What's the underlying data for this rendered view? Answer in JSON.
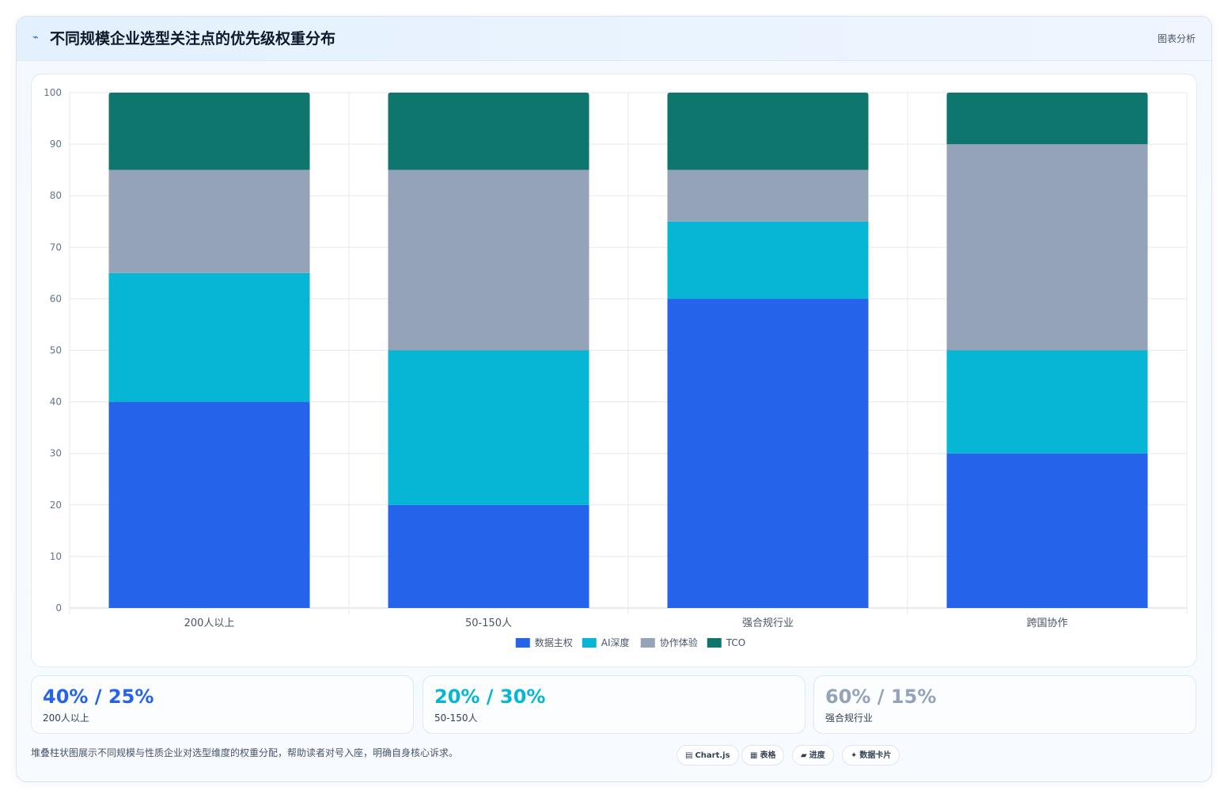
{
  "header": {
    "icon": "wave-icon",
    "title": "不同规模企业选型关注点的优先级权重分布",
    "tag": "图表分析"
  },
  "chart_data": {
    "type": "bar",
    "stacked": true,
    "title": "",
    "xlabel": "",
    "ylabel": "",
    "categories": [
      "200人以上",
      "50-150人",
      "强合规行业",
      "跨国协作"
    ],
    "ylim": [
      0,
      100
    ],
    "yticks": [
      0,
      10,
      20,
      30,
      40,
      50,
      60,
      70,
      80,
      90,
      100
    ],
    "grid": true,
    "legend_position": "bottom",
    "series": [
      {
        "name": "数据主权",
        "color": "#2563eb",
        "values": [
          40,
          20,
          60,
          30
        ]
      },
      {
        "name": "AI深度",
        "color": "#06b6d4",
        "values": [
          25,
          30,
          15,
          20
        ]
      },
      {
        "name": "协作体验",
        "color": "#94a3b8",
        "values": [
          20,
          35,
          10,
          40
        ]
      },
      {
        "name": "TCO",
        "color": "#0f766e",
        "values": [
          15,
          15,
          15,
          10
        ]
      }
    ]
  },
  "stats": [
    {
      "value": "40% / 25%",
      "label": "200人以上",
      "color": "#2563eb"
    },
    {
      "value": "20% / 30%",
      "label": "50-150人",
      "color": "#06b6d4"
    },
    {
      "value": "60% / 15%",
      "label": "强合规行业",
      "color": "#94a3b8"
    }
  ],
  "footer": {
    "text": "堆叠柱状图展示不同规模与性质企业对选型维度的权重分配，帮助读者对号入座，明确自身核心诉求。",
    "chips": [
      {
        "icon": "chart-icon",
        "glyph": "▤",
        "label": "Chart.js"
      },
      {
        "icon": "table-icon",
        "glyph": "▦",
        "label": "表格"
      },
      {
        "icon": "progress-icon",
        "glyph": "▰",
        "label": "进度"
      },
      {
        "icon": "sparkle-icon",
        "glyph": "✦",
        "label": "数据卡片"
      }
    ]
  }
}
